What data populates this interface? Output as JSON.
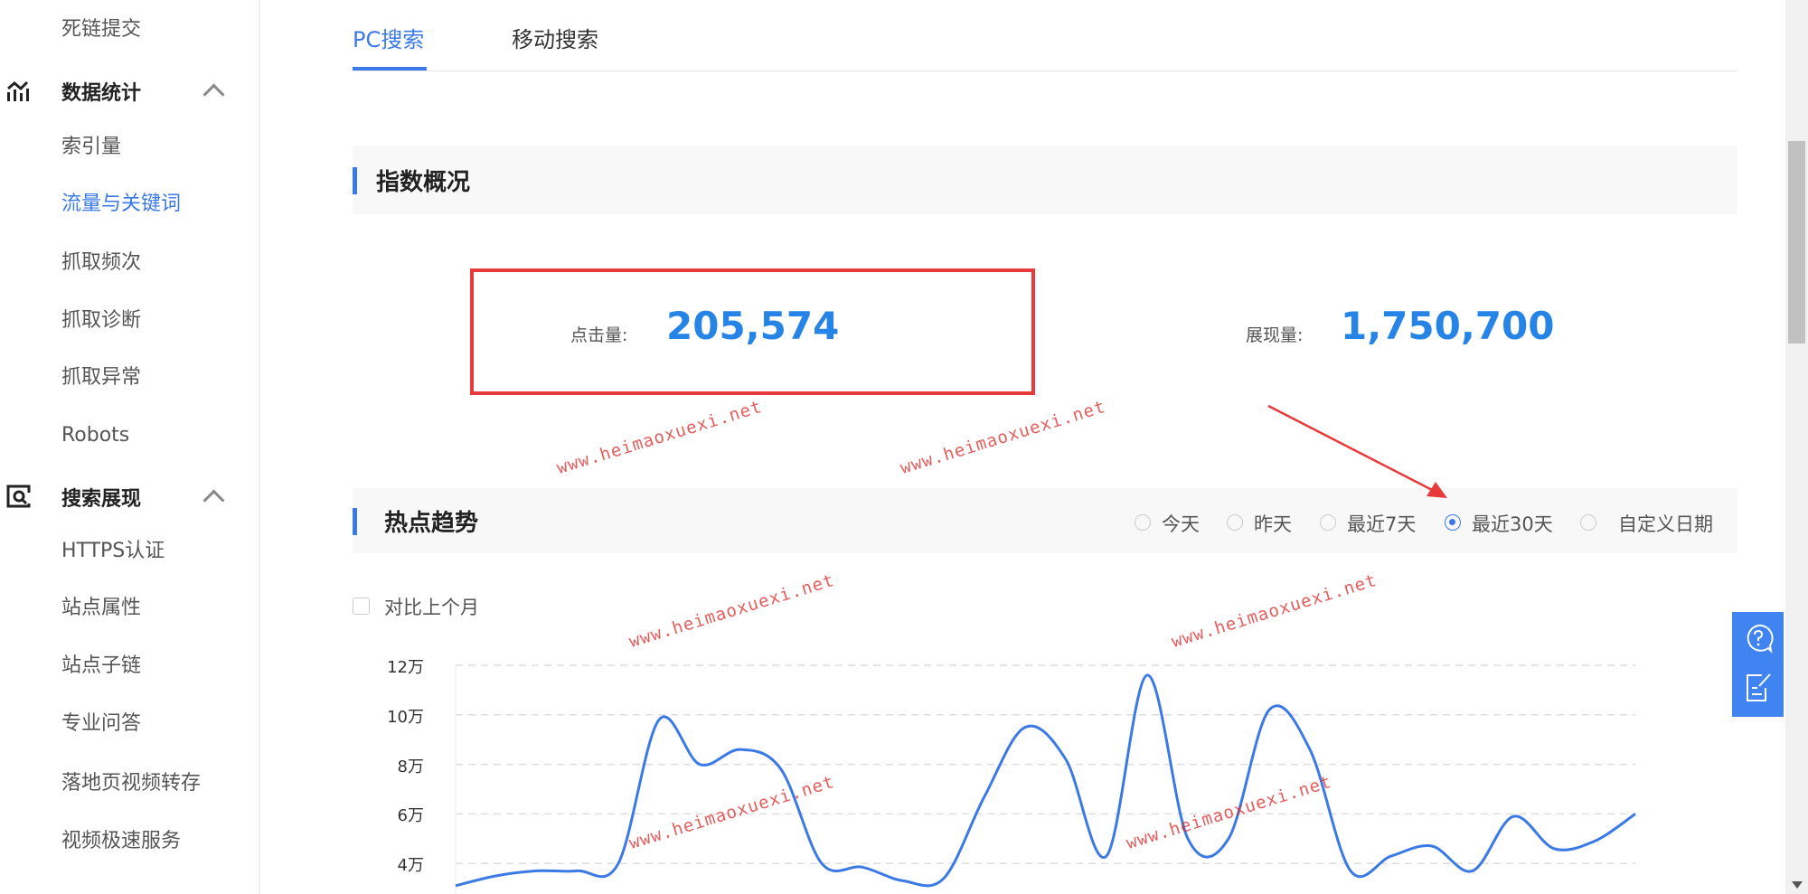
{
  "sidebar": {
    "top_item": "死链提交",
    "groups": [
      {
        "label": "数据统计",
        "icon": "bar-chart-icon",
        "items": [
          "索引量",
          "流量与关键词",
          "抓取频次",
          "抓取诊断",
          "抓取异常",
          "Robots"
        ],
        "active": "流量与关键词"
      },
      {
        "label": "搜索展现",
        "icon": "search-screen-icon",
        "items": [
          "HTTPS认证",
          "站点属性",
          "站点子链",
          "专业问答",
          "落地页视频转存",
          "视频极速服务"
        ]
      }
    ]
  },
  "tabs": [
    {
      "label": "PC搜索",
      "active": true
    },
    {
      "label": "移动搜索",
      "active": false
    }
  ],
  "overview": {
    "title": "指数概况",
    "clicks_label": "点击量:",
    "clicks_value": "205,574",
    "impressions_label": "展现量:",
    "impressions_value": "1,750,700"
  },
  "trend": {
    "title": "热点趋势",
    "ranges": [
      "今天",
      "昨天",
      "最近7天",
      "最近30天",
      "自定义日期"
    ],
    "selected_range": "最近30天",
    "compare_label": "对比上个月",
    "compare_checked": false
  },
  "chart_data": {
    "type": "line",
    "y_tick_labels": [
      "12万",
      "10万",
      "8万",
      "6万",
      "4万"
    ],
    "y_unit": "万",
    "ylim_visible": [
      4,
      12
    ],
    "grid": true,
    "color": "#3b7ae6",
    "values": [
      3.1,
      3.5,
      3.7,
      3.7,
      4.0,
      9.8,
      8.0,
      8.6,
      7.8,
      4.0,
      3.85,
      3.3,
      3.4,
      6.7,
      9.5,
      8.2,
      4.3,
      11.6,
      5.0,
      5.0,
      10.2,
      8.6,
      3.7,
      4.3,
      4.7,
      3.7,
      5.9,
      4.6,
      4.9,
      6.0
    ]
  },
  "colors": {
    "accent": "#3b7ae6",
    "metric": "#2584e6",
    "annotation": "#e83a3a",
    "float_panel": "#3f84f0"
  },
  "float_panel": {
    "icons": [
      "help-chat-icon",
      "feedback-edit-icon"
    ]
  },
  "watermark": "www.heimaoxuexi.net"
}
